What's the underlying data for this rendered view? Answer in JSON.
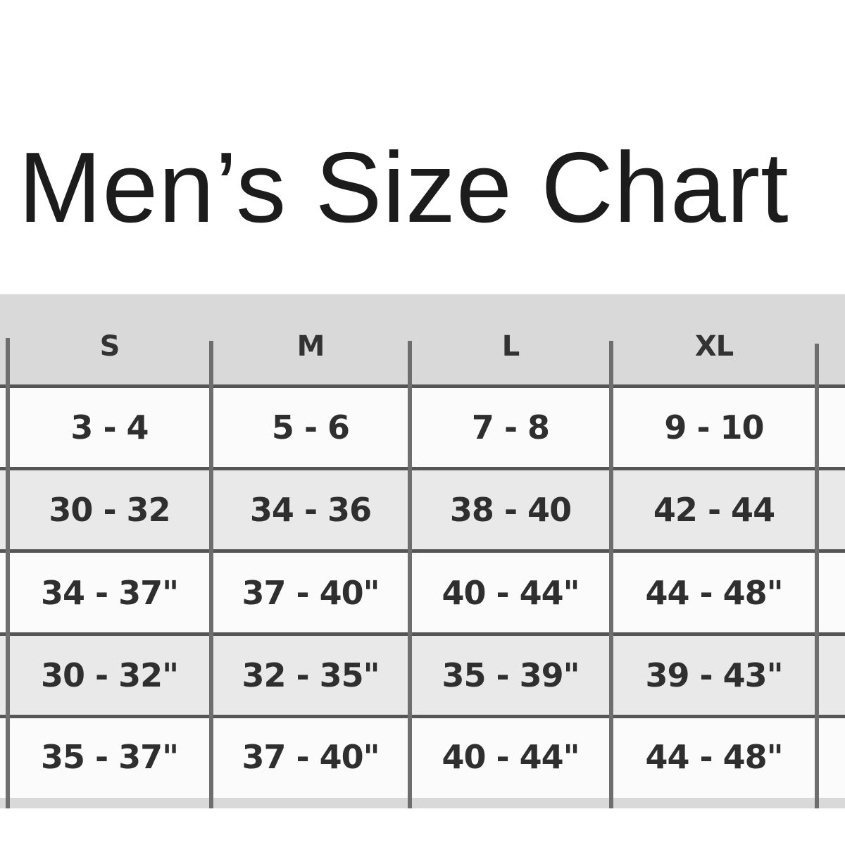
{
  "title": "Men’s Size Chart",
  "table": {
    "headers": [
      "S",
      "M",
      "L",
      "XL"
    ],
    "rows": [
      [
        "3 - 4",
        "5 - 6",
        "7 - 8",
        "9 - 10"
      ],
      [
        "30 - 32",
        "34 - 36",
        "38 - 40",
        "42 - 44"
      ],
      [
        "34 - 37\"",
        "37 - 40\"",
        "40 - 44\"",
        "44 - 48\""
      ],
      [
        "30 - 32\"",
        "32 - 35\"",
        "35 - 39\"",
        "39 - 43\""
      ],
      [
        "35 - 37\"",
        "37 - 40\"",
        "40 - 44\"",
        "44 - 48\""
      ]
    ]
  }
}
